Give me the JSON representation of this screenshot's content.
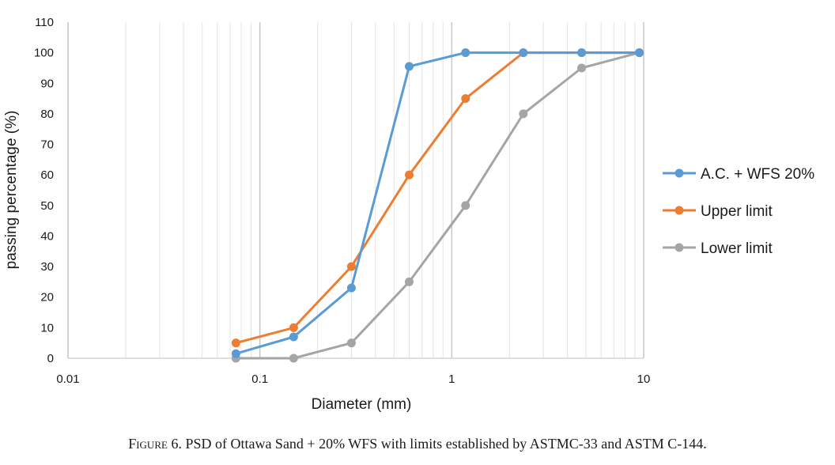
{
  "chart_data": {
    "type": "line",
    "title": "",
    "xlabel": "Diameter (mm)",
    "ylabel": "passing percentage (%)",
    "x_scale": "log",
    "xlim": [
      0.01,
      10
    ],
    "ylim": [
      0,
      110
    ],
    "x_tick_labels": [
      "0.01",
      "0.1",
      "1",
      "10"
    ],
    "x_ticks": [
      0.01,
      0.1,
      1,
      10
    ],
    "y_ticks": [
      0,
      10,
      20,
      30,
      40,
      50,
      60,
      70,
      80,
      90,
      100,
      110
    ],
    "grid": true,
    "legend_position": "right",
    "series": [
      {
        "name": "A.C. + WFS 20%",
        "color": "#5b9bd5",
        "x": [
          0.075,
          0.15,
          0.3,
          0.6,
          1.18,
          2.36,
          4.75,
          9.5
        ],
        "y": [
          1.5,
          7,
          23,
          95.5,
          100,
          100,
          100,
          100
        ]
      },
      {
        "name": "Upper limit",
        "color": "#ed7d31",
        "x": [
          0.075,
          0.15,
          0.3,
          0.6,
          1.18,
          2.36,
          4.75,
          9.5
        ],
        "y": [
          5,
          10,
          30,
          60,
          85,
          100,
          100,
          100
        ]
      },
      {
        "name": "Lower limit",
        "color": "#a5a5a5",
        "x": [
          0.075,
          0.15,
          0.3,
          0.6,
          1.18,
          2.36,
          4.75,
          9.5
        ],
        "y": [
          0,
          0,
          5,
          25,
          50,
          80,
          95,
          100
        ]
      }
    ]
  },
  "caption": {
    "label": "Figure",
    "text": " 6. PSD of Ottawa Sand + 20% WFS with limits established by ASTMC-33 and ASTM C-144."
  }
}
